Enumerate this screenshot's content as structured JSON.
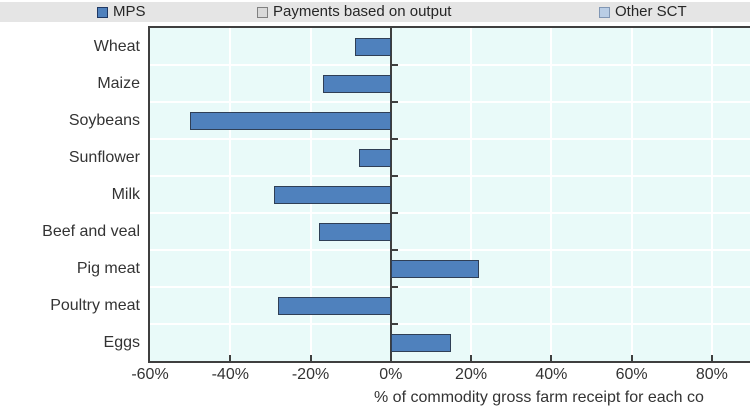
{
  "legend": {
    "items": [
      {
        "label": "MPS",
        "swatch_fill": "#4F81BD",
        "swatch_border": "#1F3864"
      },
      {
        "label": "Payments based on output",
        "swatch_fill": "#D9D9D9",
        "swatch_border": "#808080"
      },
      {
        "label": "Other SCT",
        "swatch_fill": "#B9CDE5",
        "swatch_border": "#8096B4"
      }
    ],
    "background": "#E5E5E5"
  },
  "chart_data": {
    "type": "bar",
    "orientation": "horizontal",
    "categories": [
      "Wheat",
      "Maize",
      "Soybeans",
      "Sunflower",
      "Milk",
      "Beef and veal",
      "Pig meat",
      "Poultry meat",
      "Eggs"
    ],
    "series": [
      {
        "name": "MPS",
        "values": [
          -9,
          -17,
          -50,
          -8,
          -29,
          -18,
          22,
          -28,
          15
        ]
      }
    ],
    "title": "",
    "xlabel": "% of commodity gross farm receipt for each co",
    "ylabel": "",
    "x_ticks": [
      "-60%",
      "-40%",
      "-20%",
      "0%",
      "20%",
      "40%",
      "60%",
      "80%"
    ],
    "x_tick_values": [
      -60,
      -40,
      -20,
      0,
      20,
      40,
      60,
      80
    ],
    "xlim": [
      -60,
      90
    ],
    "grid": true,
    "legend_position": "top",
    "colors": {
      "bar_fill": "#4F81BD",
      "bar_border": "#2F3F56",
      "plot_bg": "#E9FAF9",
      "gridline": "#FFFFFF",
      "axis": "#3F3F3F",
      "legend_bg": "#E5E5E5"
    }
  }
}
